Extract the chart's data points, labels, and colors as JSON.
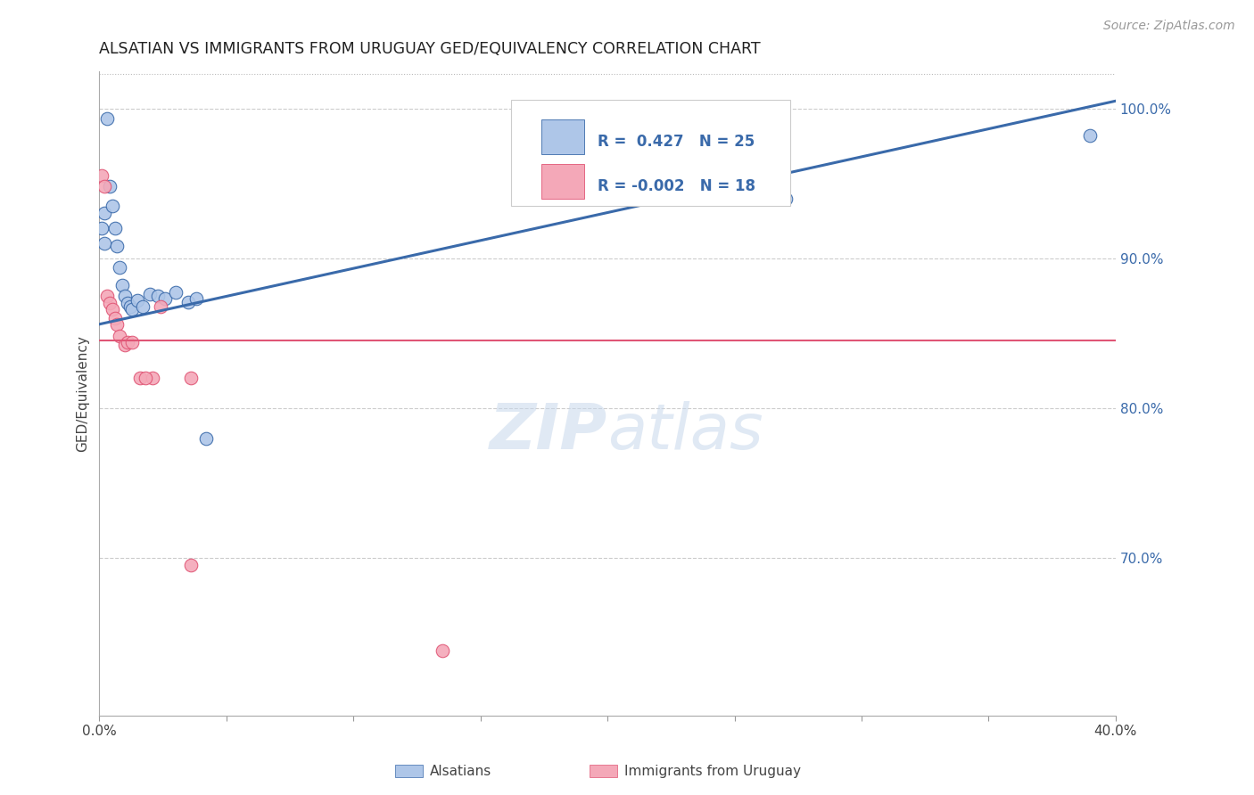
{
  "title": "ALSATIAN VS IMMIGRANTS FROM URUGUAY GED/EQUIVALENCY CORRELATION CHART",
  "source": "Source: ZipAtlas.com",
  "ylabel": "GED/Equivalency",
  "xmin": 0.0,
  "xmax": 0.4,
  "ymin": 0.595,
  "ymax": 1.025,
  "yticks": [
    0.7,
    0.8,
    0.9,
    1.0
  ],
  "ytick_labels": [
    "70.0%",
    "80.0%",
    "90.0%",
    "100.0%"
  ],
  "blue_R": 0.427,
  "blue_N": 25,
  "pink_R": -0.002,
  "pink_N": 18,
  "blue_color": "#aec6e8",
  "pink_color": "#f4a8b8",
  "blue_line_color": "#3a6aaa",
  "pink_line_color": "#e05575",
  "legend_text_color": "#3a6aaa",
  "blue_line_x0": 0.0,
  "blue_line_y0": 0.856,
  "blue_line_x1": 0.4,
  "blue_line_y1": 1.005,
  "pink_line_x0": 0.0,
  "pink_line_y0": 0.845,
  "pink_line_x1": 0.4,
  "pink_line_y1": 0.845,
  "watermark": "ZIPatlas",
  "background_color": "#ffffff",
  "grid_color": "#cccccc",
  "top_border_color": "#bbbbbb"
}
